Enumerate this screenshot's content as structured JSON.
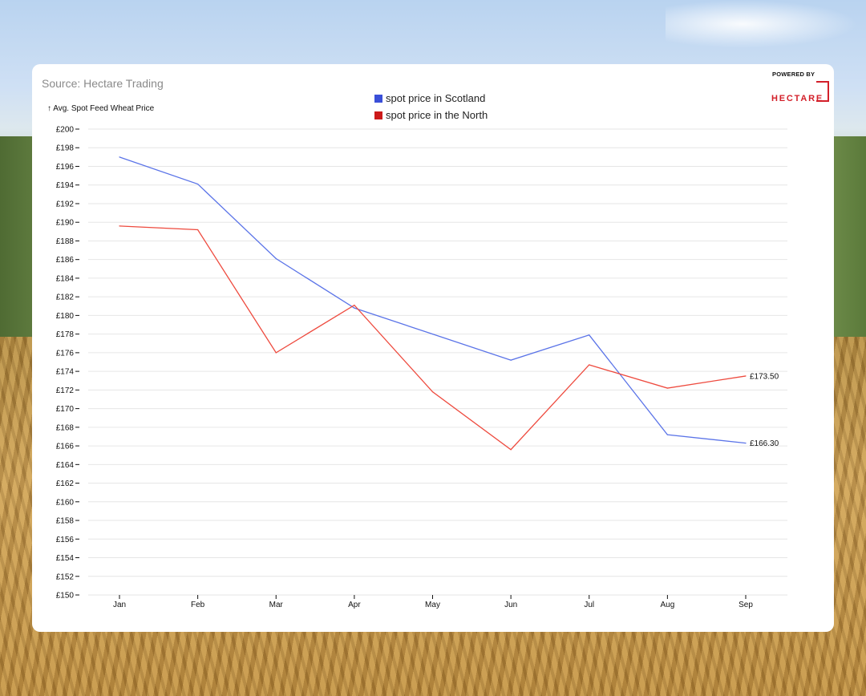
{
  "source": "Source: Hectare Trading",
  "logo": {
    "top_text": "POWERED BY",
    "word": "HECTARE"
  },
  "chart_data": {
    "type": "line",
    "ylabel": "↑ Avg. Spot Feed Wheat Price",
    "ylim": [
      150,
      200
    ],
    "ytick_step": 2,
    "ytick_prefix": "£",
    "categories": [
      "Jan",
      "Feb",
      "Mar",
      "Apr",
      "May",
      "Jun",
      "Jul",
      "Aug",
      "Sep"
    ],
    "grid": true,
    "legend_position": "top-center",
    "series": [
      {
        "name": "spot price in Scotland",
        "color": "#3a4fd8",
        "line_color": "#5b74e8",
        "values": [
          197.0,
          194.1,
          186.1,
          180.8,
          178.0,
          175.2,
          177.9,
          167.2,
          166.3
        ],
        "end_label": "£166.30"
      },
      {
        "name": "spot price in the North",
        "color": "#cc1a1a",
        "line_color": "#ee4a3e",
        "values": [
          189.6,
          189.2,
          176.0,
          181.1,
          171.8,
          165.6,
          174.7,
          172.2,
          173.5
        ],
        "end_label": "£173.50"
      }
    ]
  }
}
